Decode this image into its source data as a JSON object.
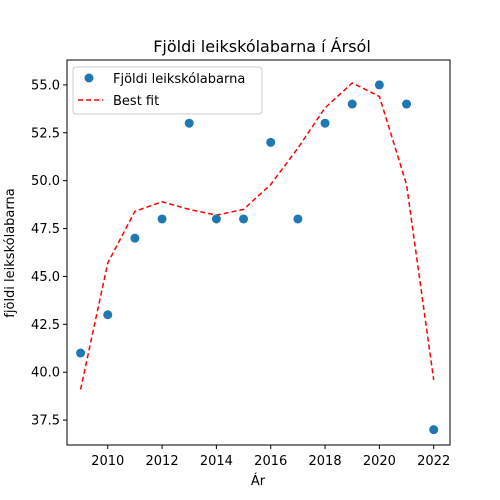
{
  "chart_data": {
    "type": "scatter",
    "title": "Fjöldi leikskólabarna í Ársól",
    "xlabel": "Ár",
    "ylabel": "fjöldi leikskólabarna",
    "xlim": [
      2008.5,
      2022.6
    ],
    "ylim": [
      36.2,
      56.3
    ],
    "xticks": [
      2010,
      2012,
      2014,
      2016,
      2018,
      2020,
      2022
    ],
    "xtick_labels": [
      "2010",
      "2012",
      "2014",
      "2016",
      "2018",
      "2020",
      "2022"
    ],
    "yticks": [
      37.5,
      40.0,
      42.5,
      45.0,
      47.5,
      50.0,
      52.5,
      55.0
    ],
    "ytick_labels": [
      "37.5",
      "40.0",
      "42.5",
      "45.0",
      "47.5",
      "50.0",
      "52.5",
      "55.0"
    ],
    "grid": false,
    "legend_position": "top-left",
    "series": [
      {
        "name": "Fjöldi leikskólabarna",
        "kind": "scatter",
        "color": "#1f77b4",
        "x": [
          2009,
          2010,
          2011,
          2012,
          2013,
          2014,
          2015,
          2016,
          2017,
          2018,
          2019,
          2020,
          2021,
          2022
        ],
        "y": [
          41,
          43,
          47,
          48,
          53,
          48,
          48,
          52,
          48,
          53,
          54,
          55,
          54,
          37
        ]
      },
      {
        "name": "Best fit",
        "kind": "line",
        "style": "dashed",
        "color": "#ff0000",
        "x": [
          2009,
          2010,
          2011,
          2012,
          2013,
          2014,
          2015,
          2016,
          2017,
          2018,
          2019,
          2020,
          2021,
          2022
        ],
        "y": [
          39.1,
          45.7,
          48.4,
          48.9,
          48.5,
          48.2,
          48.5,
          49.8,
          51.7,
          53.8,
          55.1,
          54.4,
          49.8,
          39.6
        ]
      }
    ]
  }
}
